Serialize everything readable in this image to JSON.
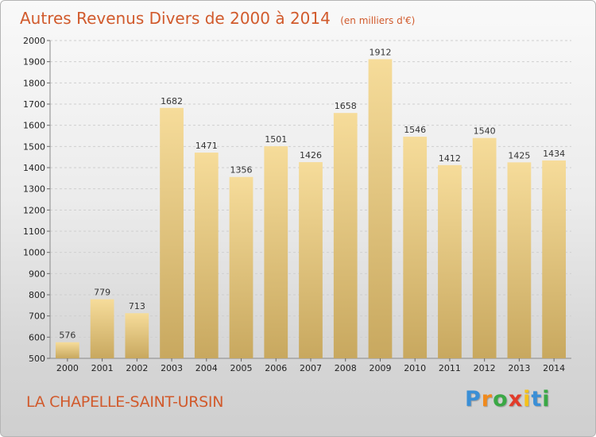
{
  "chart_data": {
    "type": "bar",
    "title": "Autres Revenus Divers de 2000 à 2014",
    "subtitle": "(en milliers d'€)",
    "categories": [
      "2000",
      "2001",
      "2002",
      "2003",
      "2004",
      "2005",
      "2006",
      "2007",
      "2008",
      "2009",
      "2010",
      "2011",
      "2012",
      "2013",
      "2014"
    ],
    "values": [
      576,
      779,
      713,
      1682,
      1471,
      1356,
      1501,
      1426,
      1658,
      1912,
      1546,
      1412,
      1540,
      1425,
      1434
    ],
    "ylim": [
      500,
      2000
    ],
    "yticks": [
      500,
      600,
      700,
      800,
      900,
      1000,
      1100,
      1200,
      1300,
      1400,
      1500,
      1600,
      1700,
      1800,
      1900,
      2000
    ],
    "grid": true,
    "legend": "none",
    "bar_color_top": "#f6dc9a",
    "bar_color_bottom": "#c8a85f"
  },
  "footer": {
    "location": "LA CHAPELLE-SAINT-URSIN",
    "logo_letters": [
      "P",
      "r",
      "o",
      "x",
      "i",
      "t",
      "i"
    ],
    "logo_colors": [
      "#3a8fd6",
      "#f08a1c",
      "#3aa845",
      "#e23b2a",
      "#f5c21b",
      "#3a8fd6",
      "#3aa845"
    ]
  }
}
